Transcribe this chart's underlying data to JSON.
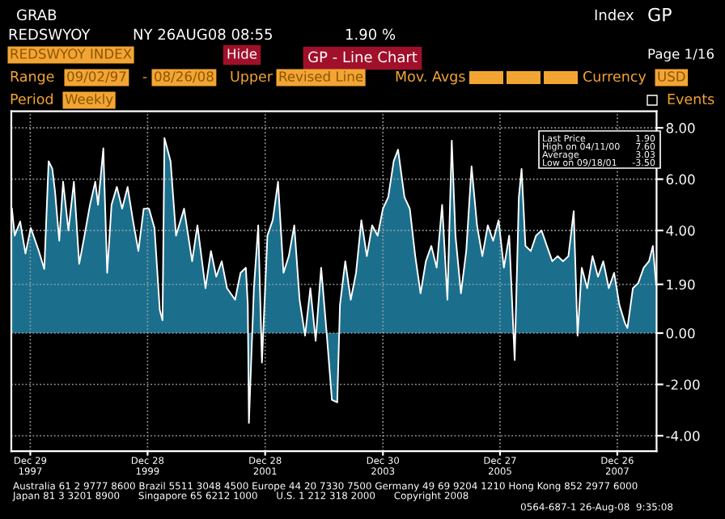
{
  "chart_data": {
    "type": "area",
    "title": "GP - Line Chart",
    "x": [
      "1997-09-06",
      "1997-09-23",
      "1997-10-27",
      "1997-11-29",
      "1998-01-01",
      "1998-02-20",
      "1998-03-26",
      "1998-04-22",
      "1998-05-15",
      "1998-06-01",
      "1998-06-27",
      "1998-07-21",
      "1998-08-23",
      "1998-09-26",
      "1998-10-29",
      "1998-12-01",
      "1999-01-04",
      "1999-02-06",
      "1999-02-23",
      "1999-03-28",
      "1999-04-21",
      "1999-05-18",
      "1999-06-20",
      "1999-07-23",
      "1999-08-26",
      "1999-09-28",
      "1999-11-01",
      "1999-12-04",
      "2000-01-06",
      "2000-02-09",
      "2000-03-13",
      "2000-03-30",
      "2000-04-11",
      "2000-05-19",
      "2000-06-22",
      "2000-08-11",
      "2000-09-30",
      "2000-11-02",
      "2000-12-22",
      "2001-01-25",
      "2001-02-27",
      "2001-04-02",
      "2001-05-05",
      "2001-06-24",
      "2001-07-28",
      "2001-08-30",
      "2001-09-11",
      "2001-09-18",
      "2001-10-19",
      "2001-11-15",
      "2001-12-08",
      "2002-01-11",
      "2002-02-13",
      "2002-03-18",
      "2002-04-21",
      "2002-05-24",
      "2002-06-27",
      "2002-07-30",
      "2002-09-02",
      "2002-10-05",
      "2002-11-07",
      "2002-12-11",
      "2003-01-13",
      "2003-02-16",
      "2003-03-21",
      "2003-04-07",
      "2003-05-10",
      "2003-06-13",
      "2003-07-16",
      "2003-08-18",
      "2003-09-21",
      "2003-10-24",
      "2003-11-27",
      "2003-12-30",
      "2004-02-01",
      "2004-03-06",
      "2004-04-02",
      "2004-05-12",
      "2004-06-14",
      "2004-07-18",
      "2004-08-20",
      "2004-09-22",
      "2004-10-26",
      "2004-11-28",
      "2005-01-01",
      "2005-02-03",
      "2005-03-02",
      "2005-03-25",
      "2005-04-28",
      "2005-05-31",
      "2005-07-03",
      "2005-08-06",
      "2005-09-08",
      "2005-10-12",
      "2005-11-14",
      "2005-12-18",
      "2006-01-20",
      "2006-02-22",
      "2006-03-28",
      "2006-04-23",
      "2006-05-10",
      "2006-06-03",
      "2006-07-06",
      "2006-08-08",
      "2006-09-11",
      "2006-10-14",
      "2006-11-17",
      "2006-12-20",
      "2007-01-23",
      "2007-02-25",
      "2007-03-30",
      "2007-04-23",
      "2007-05-19",
      "2007-06-22",
      "2007-07-25",
      "2007-08-28",
      "2007-09-30",
      "2007-11-03",
      "2007-12-06",
      "2008-01-08",
      "2008-02-11",
      "2008-02-27",
      "2008-04-01",
      "2008-05-04",
      "2008-06-07",
      "2008-07-10",
      "2008-08-03",
      "2008-08-23"
    ],
    "series": [
      {
        "color": "#1b6f8c",
        "values": [
          4.85,
          3.8,
          4.35,
          3.1,
          4.1,
          3.2,
          2.5,
          6.7,
          6.4,
          5.5,
          3.6,
          5.9,
          4.0,
          5.9,
          2.7,
          3.8,
          5.0,
          5.9,
          5.0,
          7.2,
          2.35,
          5.0,
          5.7,
          4.85,
          5.7,
          4.4,
          3.2,
          4.85,
          4.85,
          4.1,
          0.9,
          0.5,
          7.6,
          6.7,
          3.8,
          4.85,
          2.8,
          4.2,
          1.75,
          3.2,
          2.2,
          2.8,
          1.75,
          1.3,
          2.35,
          2.55,
          1.1,
          -3.5,
          1.75,
          4.2,
          -1.15,
          3.8,
          4.4,
          5.9,
          2.35,
          3.0,
          4.2,
          1.3,
          -0.1,
          1.75,
          -0.3,
          2.55,
          0.1,
          -2.6,
          -2.7,
          1.1,
          2.8,
          1.3,
          2.35,
          4.4,
          3.0,
          4.2,
          3.8,
          4.85,
          5.3,
          6.7,
          7.15,
          5.3,
          4.85,
          3.0,
          1.55,
          2.8,
          3.4,
          2.55,
          5.0,
          1.3,
          7.5,
          3.8,
          1.55,
          3.2,
          6.5,
          4.2,
          3.0,
          4.2,
          3.6,
          4.4,
          2.55,
          3.8,
          -1.05,
          5.3,
          6.4,
          3.4,
          3.2,
          3.8,
          4.0,
          3.4,
          2.8,
          3.0,
          2.8,
          3.0,
          4.75,
          -0.1,
          2.55,
          1.75,
          3.0,
          2.2,
          2.8,
          1.75,
          2.35,
          1.1,
          0.4,
          0.2,
          1.75,
          1.95,
          2.55,
          2.8,
          3.4,
          1.9
        ]
      }
    ],
    "xlim": [
      "1997-09-02",
      "2008-08-26"
    ],
    "xticks": [
      {
        "value": "1997-12-29",
        "label": "Dec 29\n1997"
      },
      {
        "value": "1999-12-28",
        "label": "Dec 28\n1999"
      },
      {
        "value": "2001-12-28",
        "label": "Dec 28\n2001"
      },
      {
        "value": "2003-12-30",
        "label": "Dec 30\n2003"
      },
      {
        "value": "2005-12-27",
        "label": "Dec 27\n2005"
      },
      {
        "value": "2007-12-26",
        "label": "Dec 26\n2007"
      }
    ],
    "ylim": [
      -4.6,
      8.65
    ],
    "yticks": [
      {
        "value": -4,
        "label": "-4.00"
      },
      {
        "value": -2,
        "label": "-2.00"
      },
      {
        "value": 0,
        "label": "0.00"
      },
      {
        "value": 1.9,
        "label": "1.90"
      },
      {
        "value": 4,
        "label": "4.00"
      },
      {
        "value": 6,
        "label": "6.00"
      },
      {
        "value": 8,
        "label": "8.00"
      }
    ],
    "grid": true,
    "line_style": "solid",
    "annotations": [
      "GRAB",
      "Index",
      "GP",
      "REDSWYOY",
      "NY 26AUG08 08:55",
      "1.90 %",
      "REDSWYOY INDEX",
      "Hide",
      "Page 1/16",
      "Range",
      "09/02/97",
      "-",
      "08/26/08",
      "Upper",
      "Revised Line",
      "Mov. Avgs",
      "Currency",
      "USD",
      "Period",
      "Weekly",
      "Events",
      "Last Price",
      "1.90",
      "High on 04/11/00",
      "7.60",
      "Average",
      "3.03",
      "Low on 09/18/01",
      "-3.50",
      "Australia 61 2 9777 8600 Brazil 5511 3048 4500 Europe 44 20 7330 7500 Germany 49 69 9204 1210 Hong Kong 852 2977 6000",
      "Japan 81 3 3201 8900      Singapore 65 6212 1000      U.S. 1 212 318 2000      Copyright 2008",
      "0564-687-1 26-Aug-08  9:35:08"
    ]
  }
}
